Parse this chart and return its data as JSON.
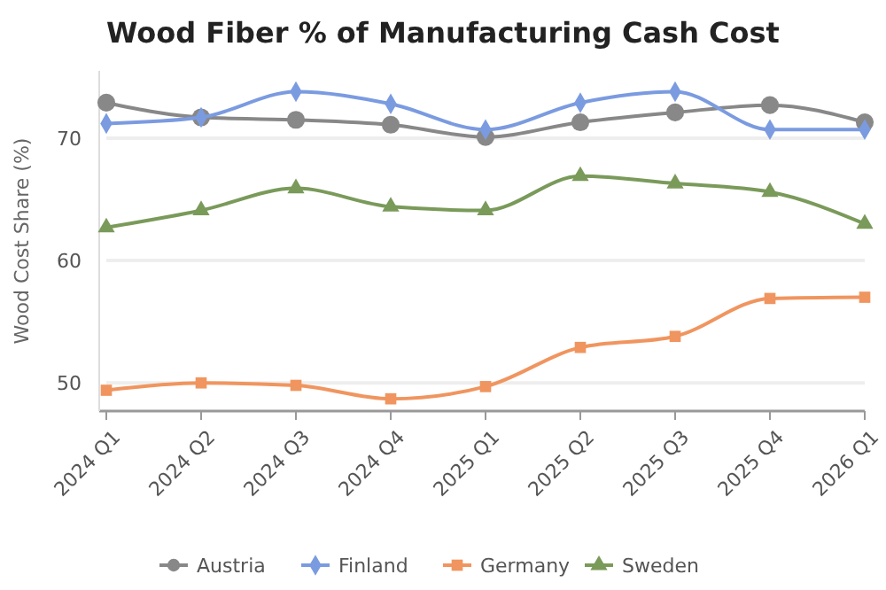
{
  "chart_data": {
    "type": "line",
    "title": "Wood Fiber % of Manufacturing Cash Cost",
    "ylabel": "Wood Cost Share (%)",
    "categories": [
      "2024 Q1",
      "2024 Q2",
      "2024 Q3",
      "2024 Q4",
      "2025 Q1",
      "2025 Q2",
      "2025 Q3",
      "2025 Q4",
      "2026 Q1"
    ],
    "series": [
      {
        "name": "Austria",
        "color": "#888888",
        "marker": "circle",
        "values": [
          72.9,
          71.7,
          71.5,
          71.1,
          70.1,
          71.3,
          72.1,
          72.7,
          71.3
        ]
      },
      {
        "name": "Finland",
        "color": "#7b9be0",
        "marker": "diamond",
        "values": [
          71.2,
          71.7,
          73.8,
          72.8,
          70.7,
          72.9,
          73.8,
          70.7,
          70.7
        ]
      },
      {
        "name": "Germany",
        "color": "#f0955f",
        "marker": "square",
        "values": [
          49.4,
          50.0,
          49.8,
          48.7,
          49.7,
          52.9,
          53.8,
          56.9,
          57.0
        ]
      },
      {
        "name": "Sweden",
        "color": "#7a9a5a",
        "marker": "triangle",
        "values": [
          62.7,
          64.1,
          65.9,
          64.4,
          64.1,
          66.9,
          66.3,
          65.6,
          63.0
        ]
      }
    ],
    "ylim": [
      47.7,
      75.5
    ],
    "yticks": [
      50,
      60,
      70
    ],
    "grid": "y",
    "legend": "bottom"
  }
}
